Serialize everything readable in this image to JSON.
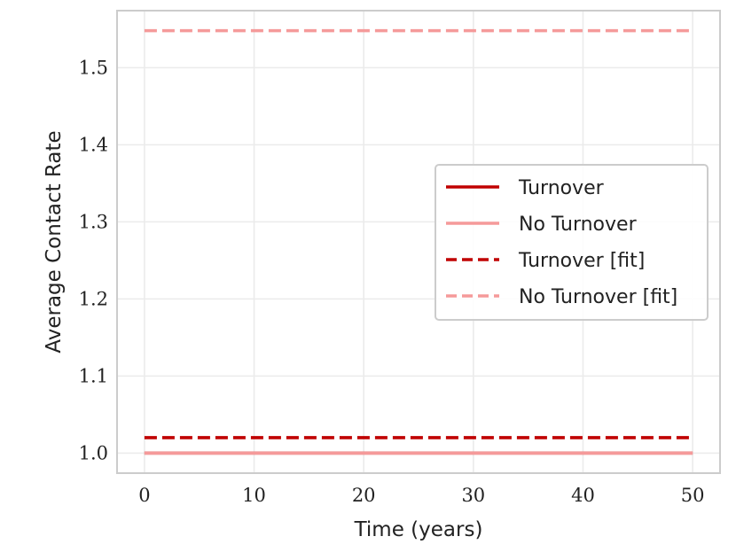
{
  "chart_data": {
    "type": "line",
    "xlabel": "Time (years)",
    "ylabel": "Average Contact Rate",
    "xlim": [
      -2.5,
      52.5
    ],
    "ylim": [
      0.974,
      1.574
    ],
    "xticks": [
      0,
      10,
      20,
      30,
      40,
      50
    ],
    "xtick_labels": [
      "0",
      "10",
      "20",
      "30",
      "40",
      "50"
    ],
    "yticks": [
      1.0,
      1.1,
      1.2,
      1.3,
      1.4,
      1.5
    ],
    "ytick_labels": [
      "1.0",
      "1.1",
      "1.2",
      "1.3",
      "1.4",
      "1.5"
    ],
    "grid": true,
    "legend_position": "center-right",
    "series": [
      {
        "name": "Turnover",
        "x": [
          0,
          50
        ],
        "y": [
          1.0,
          1.0
        ],
        "color": "#c00000",
        "dash": "solid"
      },
      {
        "name": "No Turnover",
        "x": [
          0,
          50
        ],
        "y": [
          1.0,
          1.0
        ],
        "color": "#f59a9a",
        "dash": "solid"
      },
      {
        "name": "Turnover [fit]",
        "x": [
          0,
          50
        ],
        "y": [
          1.02,
          1.02
        ],
        "color": "#c00000",
        "dash": "dashed"
      },
      {
        "name": "No Turnover [fit]",
        "x": [
          0,
          50
        ],
        "y": [
          1.548,
          1.548
        ],
        "color": "#f59a9a",
        "dash": "dashed"
      }
    ]
  }
}
